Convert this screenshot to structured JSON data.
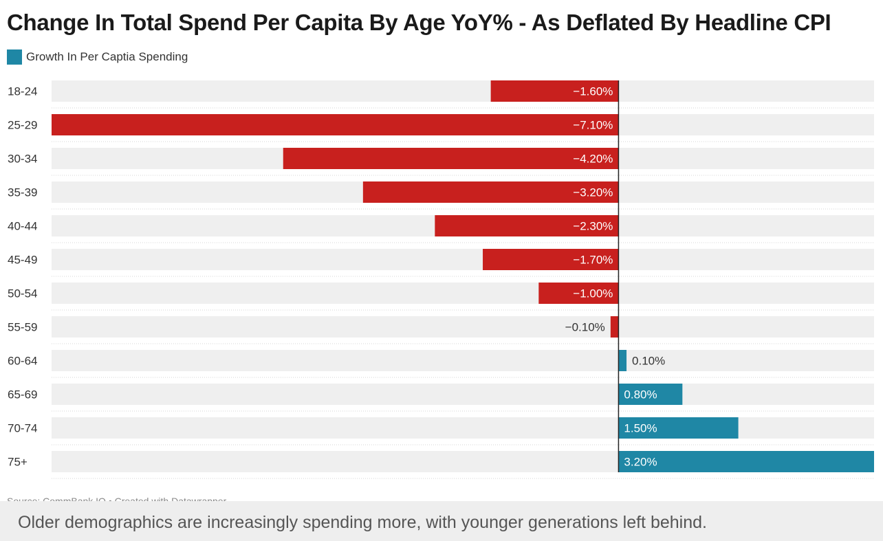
{
  "chart_data": {
    "type": "bar",
    "orientation": "horizontal",
    "title": "Change In Total Spend Per Capita By Age YoY% - As Deflated By Headline CPI",
    "legend": [
      {
        "label": "Growth In Per Captia Spending",
        "color": "#1f87a5"
      }
    ],
    "categories": [
      "18-24",
      "25-29",
      "30-34",
      "35-39",
      "40-44",
      "45-49",
      "50-54",
      "55-59",
      "60-64",
      "65-69",
      "70-74",
      "75+"
    ],
    "values": [
      -1.6,
      -7.1,
      -4.2,
      -3.2,
      -2.3,
      -1.7,
      -1.0,
      -0.1,
      0.1,
      0.8,
      1.5,
      3.2
    ],
    "labels": [
      "−1.60%",
      "−7.10%",
      "−4.20%",
      "−3.20%",
      "−2.30%",
      "−1.70%",
      "−1.00%",
      "−0.10%",
      "0.10%",
      "0.80%",
      "1.50%",
      "3.20%"
    ],
    "xlim": [
      -7.1,
      3.2
    ],
    "negative_color": "#c8201e",
    "positive_color": "#1f87a5",
    "background_bar_color": "#efefef",
    "source": "Source: CommBank IQ • Created with Datawrapper"
  },
  "caption": "Older demographics are increasingly spending more, with younger generations left behind."
}
